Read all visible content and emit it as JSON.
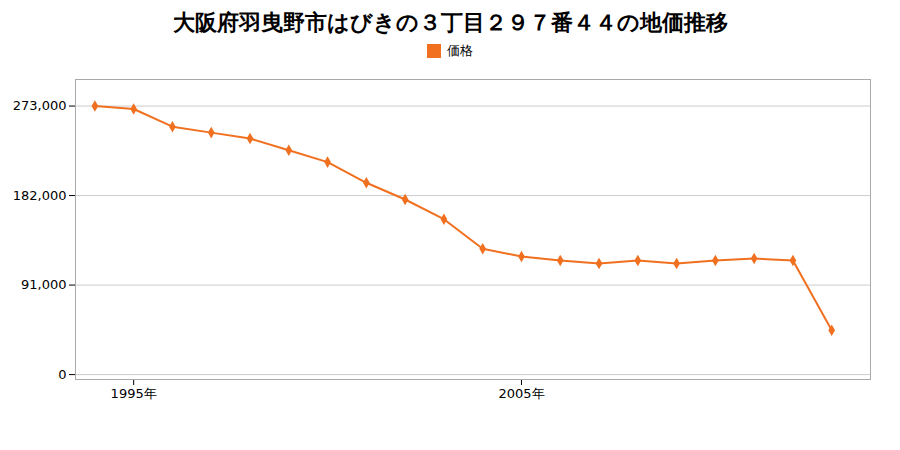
{
  "chart_data": {
    "type": "line",
    "title": "大阪府羽曳野市はびきの３丁目２９７番４４の地価推移",
    "x": [
      1994,
      1995,
      1996,
      1997,
      1998,
      1999,
      2000,
      2001,
      2002,
      2003,
      2004,
      2005,
      2006,
      2007,
      2008,
      2009,
      2010,
      2011,
      2012,
      2013
    ],
    "series": [
      {
        "name": "価格",
        "color": "#f07020",
        "marker": "diamond",
        "line_style": "solid",
        "values": [
          273000,
          270000,
          252000,
          246000,
          240000,
          228000,
          216000,
          195000,
          178000,
          158000,
          128000,
          120000,
          116000,
          113000,
          116000,
          113000,
          116000,
          118000,
          116000,
          45000
        ]
      }
    ],
    "xlim": [
      1993.5,
      2014.0
    ],
    "xticks": [
      {
        "value": 1995,
        "label": "1995年"
      },
      {
        "value": 2005,
        "label": "2005年"
      }
    ],
    "ylim": [
      -5000,
      300000
    ],
    "yticks": [
      0,
      {
        "value": 91000,
        "label": "91,000"
      },
      {
        "value": 182000,
        "label": "182,000"
      },
      {
        "value": 273000,
        "label": "273,000"
      }
    ],
    "grid": true,
    "legend": "top"
  }
}
